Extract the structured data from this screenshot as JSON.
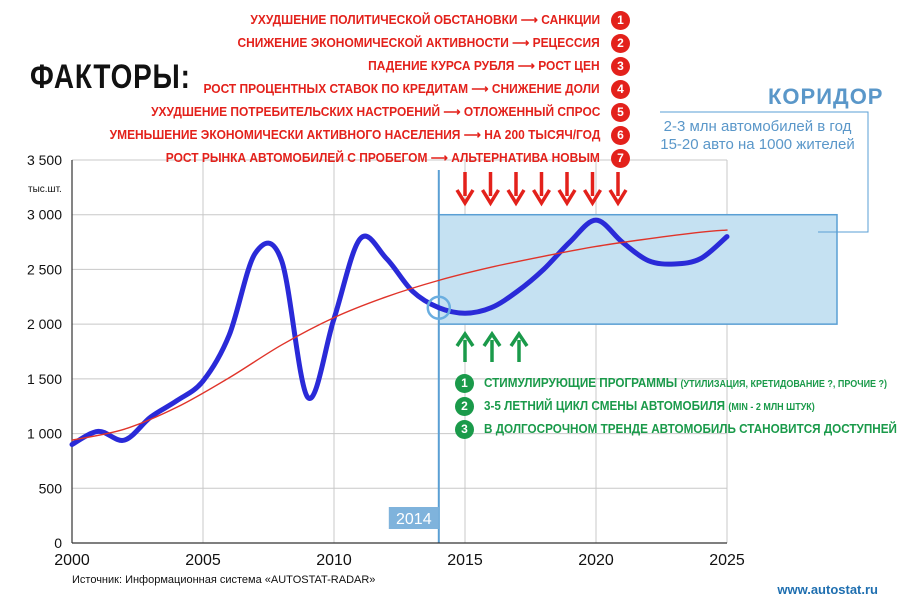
{
  "title": "ФАКТОРЫ:",
  "factors": [
    {
      "num": "1",
      "text": "УХУДШЕНИЕ ПОЛИТИЧЕСКОЙ ОБСТАНОВКИ ⟶ САНКЦИИ"
    },
    {
      "num": "2",
      "text": "СНИЖЕНИЕ ЭКОНОМИЧЕСКОЙ АКТИВНОСТИ ⟶ РЕЦЕССИЯ"
    },
    {
      "num": "3",
      "text": "ПАДЕНИЕ КУРСА РУБЛЯ ⟶ РОСТ ЦЕН"
    },
    {
      "num": "4",
      "text": "РОСТ ПРОЦЕНТНЫХ СТАВОК ПО КРЕДИТАМ ⟶ СНИЖЕНИЕ ДОЛИ"
    },
    {
      "num": "5",
      "text": "УХУДШЕНИЕ ПОТРЕБИТЕЛЬСКИХ НАСТРОЕНИЙ ⟶ ОТЛОЖЕННЫЙ СПРОС"
    },
    {
      "num": "6",
      "text": "УМЕНЬШЕНИЕ ЭКОНОМИЧЕСКИ АКТИВНОГО НАСЕЛЕНИЯ ⟶ НА 200 ТЫСЯЧ/ГОД"
    },
    {
      "num": "7",
      "text": "РОСТ РЫНКА АВТОМОБИЛЕЙ С ПРОБЕГОМ ⟶ АЛЬТЕРНАТИВА НОВЫМ"
    }
  ],
  "positive_factors": [
    {
      "num": "1",
      "text": "СТИМУЛИРУЮЩИЕ ПРОГРАММЫ",
      "note": "(УТИЛИЗАЦИЯ, КРЕТИДОВАНИЕ ?, ПРОЧИЕ ?)"
    },
    {
      "num": "2",
      "text": "3-5 ЛЕТНИЙ ЦИКЛ СМЕНЫ АВТОМОБИЛЯ",
      "note": "(MIN - 2 МЛН ШТУК)"
    },
    {
      "num": "3",
      "text": "В ДОЛГОСРОЧНОМ ТРЕНДЕ АВТОМОБИЛЬ СТАНОВИТСЯ ДОСТУПНЕЙ",
      "note": ""
    }
  ],
  "corridor": {
    "title": "КОРИДОР",
    "line1": "2-3 млн автомобилей в год",
    "line2": "15-20 авто на 1000 жителей"
  },
  "source": "Источник: Информационная система «AUTOSTAT-RADAR»",
  "website": "www.autostat.ru",
  "colors": {
    "main": "#2a2ad8",
    "trend": "#e0342a",
    "corridor": "#c5e1f2",
    "corridor_border": "#5a9fd4",
    "negative": "#e3211b",
    "positive": "#1a9a4a"
  },
  "chart_data": {
    "type": "line",
    "ylabel": "тыс.шт.",
    "xlim": [
      2000,
      2025
    ],
    "ylim": [
      0,
      3500
    ],
    "x_ticks": [
      "2000",
      "2005",
      "2010",
      "2015",
      "2020",
      "2025"
    ],
    "y_ticks": [
      "0",
      "500",
      "1 000",
      "1 500",
      "2 000",
      "2 500",
      "3 000",
      "3 500"
    ],
    "marker_year": "2014",
    "corridor_range": [
      2000,
      3000
    ],
    "series": [
      {
        "name": "market",
        "x": [
          2000,
          2001,
          2002,
          2003,
          2004,
          2005,
          2006,
          2007,
          2008,
          2009,
          2010,
          2011,
          2012,
          2013,
          2014,
          2015,
          2016,
          2017,
          2018,
          2019,
          2020,
          2021,
          2022,
          2023,
          2024,
          2025
        ],
        "y": [
          900,
          1020,
          940,
          1150,
          1300,
          1480,
          1900,
          2650,
          2580,
          1330,
          2050,
          2780,
          2600,
          2300,
          2150,
          2100,
          2150,
          2300,
          2500,
          2750,
          2950,
          2750,
          2580,
          2550,
          2600,
          2800
        ]
      },
      {
        "name": "trend",
        "x": [
          2000,
          2002,
          2004,
          2006,
          2008,
          2010,
          2012,
          2014,
          2016,
          2018,
          2020,
          2022,
          2024,
          2025
        ],
        "y": [
          940,
          1040,
          1240,
          1510,
          1810,
          2060,
          2250,
          2400,
          2520,
          2620,
          2710,
          2780,
          2840,
          2860
        ]
      }
    ],
    "negative_arrow_count": 7,
    "positive_arrow_count": 3
  }
}
